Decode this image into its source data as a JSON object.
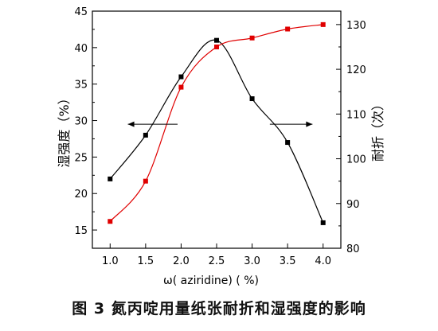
{
  "chart_data": {
    "type": "line",
    "x": [
      1.0,
      1.5,
      2.0,
      2.5,
      3.0,
      3.5,
      4.0
    ],
    "x_tick_labels": [
      "1.0",
      "1.5",
      "2.0",
      "2.5",
      "3.0",
      "3.5",
      "4.0"
    ],
    "xlabel": "ω( aziridine) ( %)",
    "xlim": [
      0.75,
      4.25
    ],
    "ylabel_left": "湿强度（%）",
    "ylim_left": [
      12.5,
      45
    ],
    "y_tick_labels_left": [
      "15",
      "20",
      "25",
      "30",
      "35",
      "40",
      "45"
    ],
    "ylabel_right": "耐折（次）",
    "ylim_right": [
      80,
      133
    ],
    "y_tick_labels_right": [
      "80",
      "90",
      "100",
      "110",
      "120",
      "130"
    ],
    "series": [
      {
        "axis": "left",
        "color": "#000000",
        "values": [
          22,
          28,
          36,
          41,
          33,
          27,
          16
        ]
      },
      {
        "axis": "right",
        "color": "#e00000",
        "values": [
          86,
          95,
          116,
          125,
          127,
          129,
          130
        ]
      }
    ],
    "arrows": [
      {
        "direction": "left",
        "at_x": [
          1.95,
          1.25
        ],
        "at_y_left": 29.5
      },
      {
        "direction": "right",
        "at_x": [
          3.25,
          3.85
        ],
        "at_y_left": 29.5
      }
    ],
    "grid": false,
    "legend": "none"
  },
  "caption": "图 3   氮丙啶用量纸张耐折和湿强度的影响"
}
